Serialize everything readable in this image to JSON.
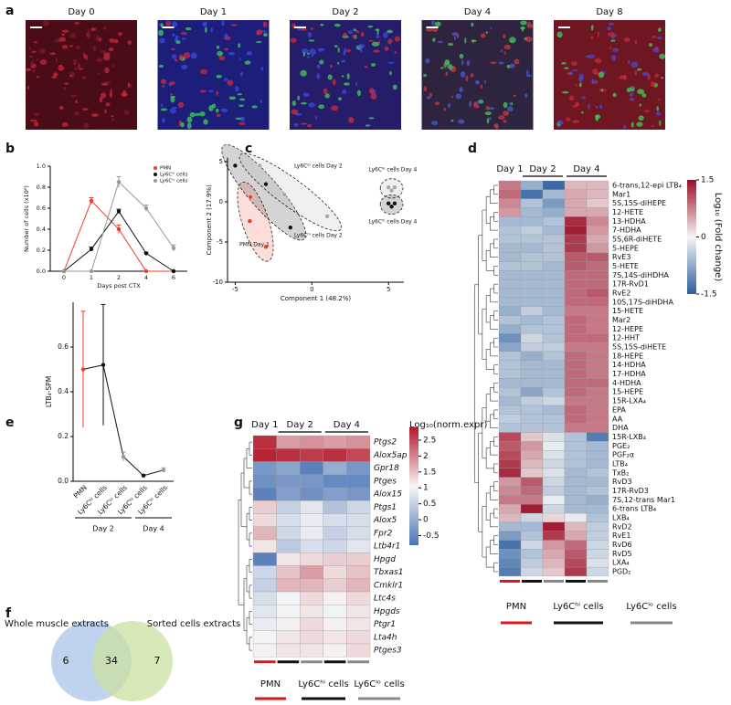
{
  "chart_data": [
    {
      "panel": "a",
      "type": "image-row",
      "titles": [
        "Day 0",
        "Day 1",
        "Day 2",
        "Day 4",
        "Day 8"
      ]
    },
    {
      "panel": "b",
      "type": "line",
      "categories": [
        "0",
        "1",
        "2",
        "4",
        "6"
      ],
      "xlabel": "Days post CTX",
      "ylabel": "Number of cells (x10⁶)",
      "ylim": [
        0,
        1
      ],
      "yticks": [
        {
          "value": 0,
          "label": "0.0"
        },
        0.2,
        0.4,
        0.6,
        0.8,
        {
          "value": 1,
          "label": "1.0"
        }
      ],
      "series": [
        {
          "name": "PMN",
          "color": "#e8402a",
          "values": [
            0,
            0.67,
            0.4,
            0,
            0
          ],
          "errors": [
            0,
            0.03,
            0.04,
            0,
            0
          ]
        },
        {
          "name": "Ly6Cʰⁱ cells",
          "color": "#111111",
          "values": [
            0,
            0.21,
            0.57,
            0.17,
            0
          ],
          "errors": [
            0,
            0.02,
            0.02,
            0.01,
            0
          ]
        },
        {
          "name": "Ly6Cˡᵒ cells",
          "color": "#999999",
          "values": [
            0,
            0,
            0.85,
            0.6,
            0.22
          ],
          "errors": [
            0,
            0,
            0.05,
            0.03,
            0.03
          ]
        }
      ]
    },
    {
      "panel": "c",
      "type": "scatter",
      "xlabel": "Component 1 (48.2%)",
      "ylabel": "Component 2 (17.9%)",
      "xlim": [
        -5.5,
        6
      ],
      "ylim": [
        -10,
        5.5
      ],
      "xticks": [
        -5,
        0,
        5
      ],
      "yticks": [
        -10,
        -5,
        0,
        5
      ],
      "series": [
        {
          "name": "PMN Day 1",
          "color": "#e8402a",
          "x": [
            -4.0,
            -4.05,
            -3.0
          ],
          "y": [
            0.6,
            -2.4,
            -5.6
          ]
        },
        {
          "name": "Ly6Cʰⁱ cells Day 2",
          "color": "#111111",
          "x": [
            -5.0,
            -3.0,
            -1.4
          ],
          "y": [
            4.5,
            2.2,
            -3.2
          ]
        },
        {
          "name": "Ly6Cˡᵒ cells Day 2",
          "color": "#aaaaaa",
          "x": [
            -3.4,
            -1.8,
            1.0
          ],
          "y": [
            4.5,
            0.9,
            -1.8
          ]
        },
        {
          "name": "Ly6Cˡᵒ cells Day 4",
          "color": "#aaaaaa",
          "x": [
            5.0,
            5.4,
            5.2
          ],
          "y": [
            1.8,
            1.8,
            1.4
          ]
        },
        {
          "name": "Ly6Cʰⁱ cells Day 4",
          "color": "#111111",
          "x": [
            5.0,
            5.4,
            5.2
          ],
          "y": [
            -0.2,
            -0.2,
            -0.6
          ]
        }
      ]
    },
    {
      "panel": "d",
      "type": "heatmap",
      "column_groups": [
        {
          "name": "Day 1",
          "span": 1
        },
        {
          "name": "Day 2",
          "span": 2
        },
        {
          "name": "Day 4",
          "span": 2
        }
      ],
      "rows": [
        "6-trans,12-epi LTB₄",
        "Mar1",
        "5S,15S-diHEPE",
        "12-HETE",
        "13-HDHA",
        "7-HDHA",
        "5S,6R-diHETE",
        "5-HEPE",
        "RvE3",
        "5-HETE",
        "7S,14S-diHDHA",
        "17R-RvD1",
        "RvE2",
        "10S,17S-diHDHA",
        "15-HETE",
        "Mar2",
        "12-HEPE",
        "12-HHT",
        "5S,15S-diHETE",
        "18-HEPE",
        "14-HDHA",
        "17-HDHA",
        "4-HDHA",
        "15-HEPE",
        "15R-LXA₄",
        "EPA",
        "AA",
        "DHA",
        "15R-LXB₄",
        "PGE₂",
        "PGF₂α",
        "LTB₄",
        "TxB₂",
        "RvD3",
        "17R-RvD3",
        "7S,12-trans Mar1",
        "6-trans LTB₄",
        "LXB₄",
        "RvD2",
        "RvE1",
        "RvD6",
        "RvD5",
        "LXA₄",
        "PGD₂"
      ],
      "values": [
        [
          0.8,
          -0.7,
          -1.4,
          0.4,
          0.4
        ],
        [
          0.9,
          -1.3,
          -0.6,
          0.5,
          0.4
        ],
        [
          0.7,
          -0.5,
          -0.9,
          0.5,
          0.3
        ],
        [
          0.6,
          -0.6,
          -0.7,
          0.5,
          0.5
        ],
        [
          -0.6,
          -0.6,
          -0.5,
          1.3,
          0.7
        ],
        [
          -0.5,
          -0.4,
          -0.6,
          1.4,
          0.6
        ],
        [
          -0.5,
          -0.5,
          -0.5,
          1.2,
          0.5
        ],
        [
          -0.6,
          -0.6,
          -0.5,
          1.2,
          0.6
        ],
        [
          -0.6,
          -0.5,
          -0.5,
          1.0,
          1.0
        ],
        [
          -0.5,
          -0.5,
          -0.6,
          1.0,
          0.9
        ],
        [
          -0.6,
          -0.6,
          -0.6,
          0.9,
          0.9
        ],
        [
          -0.6,
          -0.6,
          -0.6,
          0.9,
          0.9
        ],
        [
          -0.6,
          -0.6,
          -0.6,
          0.9,
          1.0
        ],
        [
          -0.6,
          -0.6,
          -0.6,
          0.9,
          0.9
        ],
        [
          -0.7,
          -0.4,
          -0.6,
          0.8,
          0.8
        ],
        [
          -0.5,
          -0.6,
          -0.5,
          0.9,
          0.8
        ],
        [
          -0.7,
          -0.5,
          -0.5,
          0.9,
          0.8
        ],
        [
          -1.0,
          -0.3,
          -0.5,
          0.9,
          0.9
        ],
        [
          -0.8,
          -0.4,
          -0.4,
          0.8,
          0.8
        ],
        [
          -0.5,
          -0.7,
          -0.5,
          0.9,
          0.8
        ],
        [
          -0.5,
          -0.6,
          -0.6,
          0.9,
          0.8
        ],
        [
          -0.5,
          -0.6,
          -0.6,
          0.9,
          0.8
        ],
        [
          -0.6,
          -0.6,
          -0.6,
          0.9,
          0.9
        ],
        [
          -0.5,
          -0.8,
          -0.5,
          0.9,
          0.8
        ],
        [
          -0.6,
          -0.4,
          -0.3,
          0.8,
          0.8
        ],
        [
          -0.5,
          -0.5,
          -0.6,
          0.9,
          0.8
        ],
        [
          -0.4,
          -0.5,
          -0.5,
          0.9,
          0.8
        ],
        [
          -0.5,
          -0.5,
          -0.5,
          0.8,
          0.8
        ],
        [
          1.1,
          0.3,
          -0.2,
          -0.5,
          -1.2
        ],
        [
          1.0,
          0.6,
          -0.1,
          -0.5,
          -0.6
        ],
        [
          1.1,
          0.5,
          -0.2,
          -0.5,
          -0.6
        ],
        [
          1.2,
          0.4,
          -0.3,
          -0.5,
          -0.6
        ],
        [
          1.3,
          0.3,
          -0.2,
          -0.6,
          -0.5
        ],
        [
          0.6,
          1.0,
          -0.3,
          -0.6,
          -0.6
        ],
        [
          0.7,
          0.9,
          -0.4,
          -0.6,
          -0.5
        ],
        [
          0.8,
          0.8,
          -0.1,
          -0.6,
          -0.7
        ],
        [
          0.5,
          1.4,
          -0.3,
          -0.6,
          -0.6
        ],
        [
          0.4,
          -0.3,
          0.2,
          -0.1,
          -0.5
        ],
        [
          -0.6,
          -0.6,
          1.4,
          0.4,
          -0.4
        ],
        [
          -0.9,
          -0.5,
          1.2,
          0.5,
          -0.4
        ],
        [
          -1.3,
          -0.3,
          0.6,
          0.9,
          -0.3
        ],
        [
          -1.0,
          -0.5,
          0.5,
          1.0,
          -0.3
        ],
        [
          -1.1,
          -0.4,
          0.4,
          1.1,
          -0.2
        ],
        [
          -1.2,
          -0.3,
          0.3,
          1.2,
          -0.3
        ]
      ],
      "zlim": [
        -1.5,
        1.5
      ],
      "zticks": [
        1.5,
        0,
        -1.5
      ],
      "colors": [
        "#2d5f9e",
        "#f5f5f5",
        "#9b0d26"
      ],
      "colorbar_label": "Log₁₀ (Fold change)",
      "column_colors": [
        "#d7191c",
        "#111111",
        "#888888",
        "#111111",
        "#888888"
      ],
      "legend": [
        {
          "name": "PMN",
          "color": "#d7191c"
        },
        {
          "name": "Ly6Cʰⁱ cells",
          "color": "#111111"
        },
        {
          "name": "Ly6Cˡᵒ cells",
          "color": "#888888"
        }
      ]
    },
    {
      "panel": "e",
      "type": "line",
      "categories": [
        "PMN",
        "Ly6Cʰⁱ cells",
        "Ly6Cˡᵒ cells",
        "Ly6Cʰⁱ cells",
        "Ly6Cˡᵒ cells"
      ],
      "groups": [
        {
          "name": "Day 2",
          "span": 3
        },
        {
          "name": "Day 4",
          "span": 2
        }
      ],
      "ylabel": "LTB₄-SPM",
      "ylim": [
        0,
        0.8
      ],
      "yticks": [
        {
          "value": 0,
          "label": "0.0"
        },
        0.2,
        0.4,
        0.6
      ],
      "values": [
        0.5,
        0.52,
        0.11,
        0.025,
        0.05
      ],
      "errors": [
        0.26,
        0.27,
        0.02,
        0.005,
        0.01
      ],
      "color": "#111111",
      "point_colors": [
        "#e8402a",
        "#111111",
        "#999999",
        "#111111",
        "#999999"
      ]
    },
    {
      "panel": "f",
      "type": "venn",
      "sets": [
        {
          "name": "Whole muscle extracts",
          "color": "#a9c4ea",
          "count": 6
        },
        {
          "name": "Sorted cells extracts",
          "color": "#c9e2a0",
          "count": 7
        }
      ],
      "intersection": 34
    },
    {
      "panel": "g",
      "type": "heatmap",
      "column_groups": [
        {
          "name": "Day 1",
          "span": 1
        },
        {
          "name": "Day 2",
          "span": 2
        },
        {
          "name": "Day 4",
          "span": 2
        }
      ],
      "rows": [
        "Ptgs2",
        "Alox5ap",
        "Gpr18",
        "Ptges",
        "Alox15",
        "Ptgs1",
        "Alox5",
        "Fpr2",
        "Ltb4r1",
        "Hpgd",
        "Tbxas1",
        "Cmklr1",
        "Ltc4s",
        "Hpgds",
        "Ptgr1",
        "Lta4h",
        "Ptges3"
      ],
      "values": [
        [
          2.7,
          1.8,
          1.9,
          1.8,
          1.9
        ],
        [
          2.8,
          2.7,
          2.6,
          2.7,
          2.5
        ],
        [
          -0.3,
          -0.1,
          -0.6,
          0.0,
          -0.3
        ],
        [
          -0.4,
          -0.3,
          -0.3,
          -0.5,
          -0.5
        ],
        [
          -0.6,
          -0.2,
          -0.4,
          -0.2,
          -0.3
        ],
        [
          1.4,
          0.5,
          0.8,
          0.3,
          0.6
        ],
        [
          1.3,
          0.7,
          0.9,
          0.7,
          0.7
        ],
        [
          1.6,
          0.6,
          0.9,
          0.5,
          0.7
        ],
        [
          1.2,
          0.4,
          0.7,
          0.6,
          0.8
        ],
        [
          -0.6,
          1.2,
          1.3,
          1.4,
          1.4
        ],
        [
          0.6,
          1.5,
          1.8,
          1.3,
          1.5
        ],
        [
          0.5,
          1.6,
          1.6,
          1.4,
          1.6
        ],
        [
          0.7,
          1.0,
          1.3,
          1.1,
          1.3
        ],
        [
          0.8,
          1.0,
          1.2,
          1.0,
          1.2
        ],
        [
          0.9,
          1.1,
          1.3,
          1.1,
          1.2
        ],
        [
          1.0,
          1.2,
          1.3,
          1.2,
          1.3
        ],
        [
          1.1,
          1.2,
          1.2,
          1.1,
          1.3
        ]
      ],
      "zlim": [
        -0.8,
        2.9
      ],
      "zticks": [
        2.5,
        2,
        1.5,
        1,
        0.5,
        0,
        -0.5
      ],
      "colors": [
        "#4a74b4",
        "#f7f7f7",
        "#b2182b"
      ],
      "colorbar_label": "Log₁₀(norm.expr)",
      "column_colors": [
        "#d7191c",
        "#111111",
        "#888888",
        "#111111",
        "#888888"
      ],
      "legend": [
        {
          "name": "PMN",
          "color": "#d7191c"
        },
        {
          "name": "Ly6Cʰⁱ cells",
          "color": "#111111"
        },
        {
          "name": "Ly6Cˡᵒ cells",
          "color": "#888888"
        }
      ]
    }
  ]
}
